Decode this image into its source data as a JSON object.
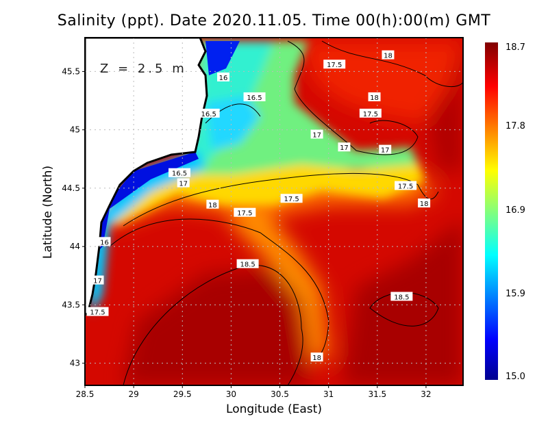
{
  "title": "Salinity (ppt). Date 2020.11.05. Time 00(h):00(m) GMT",
  "depth_label": "Z = 2.5 m",
  "xlabel": "Longitude (East)",
  "ylabel": "Latitude (North)",
  "colorbar": {
    "labels": [
      "18.7",
      "17.8",
      "16.9",
      "15.9",
      "15.0"
    ],
    "min": 15.0,
    "max": 18.7
  },
  "chart_data": {
    "type": "heatmap",
    "title": "Salinity (ppt). Date 2020.11.05. Time 00(h):00(m) GMT",
    "xlabel": "Longitude (East)",
    "ylabel": "Latitude (North)",
    "xlim": [
      28.5,
      32.38
    ],
    "ylim": [
      42.81,
      45.79
    ],
    "x_ticks": [
      "28.5",
      "29",
      "29.5",
      "30",
      "30.5",
      "31",
      "31.5",
      "32"
    ],
    "y_ticks": [
      "43",
      "43.5",
      "44",
      "44.5",
      "45",
      "45.5"
    ],
    "grid": true,
    "contour_labels": [
      {
        "text": "18",
        "lon": 31.61,
        "lat": 45.64
      },
      {
        "text": "17.5",
        "lon": 31.06,
        "lat": 45.56
      },
      {
        "text": "16",
        "lon": 29.92,
        "lat": 45.45
      },
      {
        "text": "18",
        "lon": 31.47,
        "lat": 45.28
      },
      {
        "text": "16.5",
        "lon": 30.24,
        "lat": 45.28
      },
      {
        "text": "17.5",
        "lon": 31.43,
        "lat": 45.14
      },
      {
        "text": "16.5",
        "lon": 29.77,
        "lat": 45.14
      },
      {
        "text": "17",
        "lon": 30.88,
        "lat": 44.96
      },
      {
        "text": "17",
        "lon": 31.16,
        "lat": 44.85
      },
      {
        "text": "17",
        "lon": 31.58,
        "lat": 44.83
      },
      {
        "text": "16.5",
        "lon": 29.47,
        "lat": 44.63
      },
      {
        "text": "17",
        "lon": 29.51,
        "lat": 44.59
      },
      {
        "text": "17.5",
        "lon": 31.79,
        "lat": 44.52
      },
      {
        "text": "17.5",
        "lon": 30.62,
        "lat": 44.41
      },
      {
        "text": "18",
        "lon": 29.81,
        "lat": 44.36
      },
      {
        "text": "18",
        "lon": 31.98,
        "lat": 44.37
      },
      {
        "text": "17.5",
        "lon": 30.14,
        "lat": 44.29
      },
      {
        "text": "16",
        "lon": 28.7,
        "lat": 44.04
      },
      {
        "text": "18.5",
        "lon": 30.17,
        "lat": 43.85
      },
      {
        "text": "17",
        "lon": 28.63,
        "lat": 43.71
      },
      {
        "text": "18.5",
        "lon": 31.75,
        "lat": 43.57
      },
      {
        "text": "17.5",
        "lon": 28.63,
        "lat": 43.44
      },
      {
        "text": "18",
        "lon": 30.88,
        "lat": 43.05
      }
    ]
  }
}
